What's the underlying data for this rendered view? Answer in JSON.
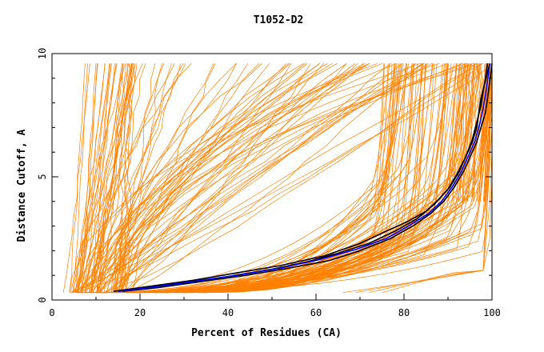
{
  "chart_data": {
    "type": "line",
    "title": "T1052-D2",
    "xlabel": "Percent of Residues (CA)",
    "ylabel": "Distance Cutoff, A",
    "xlim": [
      0,
      100
    ],
    "ylim": [
      0,
      10
    ],
    "x_ticks": [
      0,
      20,
      40,
      60,
      80,
      100
    ],
    "y_ticks": [
      0,
      5,
      10
    ],
    "grid": false,
    "legend": "none",
    "colors": {
      "models": "#ff8000",
      "highlight_dark": "#000000",
      "highlight_blue": "#0000ff"
    },
    "series": [
      {
        "color": "#000000",
        "x": [
          14,
          20,
          30,
          40,
          50,
          58,
          65,
          72,
          78,
          83,
          87,
          90,
          92,
          94,
          95.5,
          96.5,
          97.5,
          98,
          98.5,
          99
        ],
        "y": [
          0.35,
          0.5,
          0.7,
          0.95,
          1.25,
          1.55,
          1.9,
          2.3,
          2.8,
          3.3,
          3.9,
          4.5,
          5.1,
          5.8,
          6.5,
          7.2,
          7.9,
          8.5,
          9.0,
          9.6
        ]
      },
      {
        "color": "#000000",
        "x": [
          15,
          22,
          32,
          42,
          52,
          62,
          70,
          76,
          81,
          85,
          88,
          90.5,
          92.5,
          94,
          95.5,
          96.5,
          97,
          97.5,
          98.5,
          99.5
        ],
        "y": [
          0.35,
          0.55,
          0.8,
          1.1,
          1.4,
          1.8,
          2.3,
          2.8,
          3.2,
          3.6,
          4.1,
          4.6,
          5.2,
          5.8,
          6.4,
          7.0,
          7.6,
          8.2,
          8.9,
          9.6
        ]
      },
      {
        "color": "#000000",
        "x": [
          16,
          24,
          34,
          44,
          54,
          63,
          70,
          77,
          82,
          86,
          89,
          91.5,
          93.5,
          95,
          96.5,
          97.5,
          98.5,
          99,
          99.5,
          100
        ],
        "y": [
          0.35,
          0.5,
          0.75,
          1.0,
          1.3,
          1.6,
          2.0,
          2.5,
          3.0,
          3.5,
          4.0,
          4.6,
          5.2,
          5.8,
          6.4,
          7.0,
          7.6,
          8.2,
          8.9,
          9.6
        ]
      },
      {
        "color": "#0000ff",
        "x": [
          15,
          22,
          32,
          42,
          52,
          61,
          69,
          76,
          81,
          85.5,
          88.5,
          91,
          93,
          94.5,
          96,
          97,
          97.8,
          98.4,
          99,
          99.5
        ],
        "y": [
          0.35,
          0.5,
          0.75,
          1.0,
          1.3,
          1.65,
          2.05,
          2.5,
          3.0,
          3.5,
          4.0,
          4.6,
          5.2,
          5.8,
          6.4,
          7.0,
          7.6,
          8.2,
          8.9,
          9.6
        ]
      }
    ]
  }
}
